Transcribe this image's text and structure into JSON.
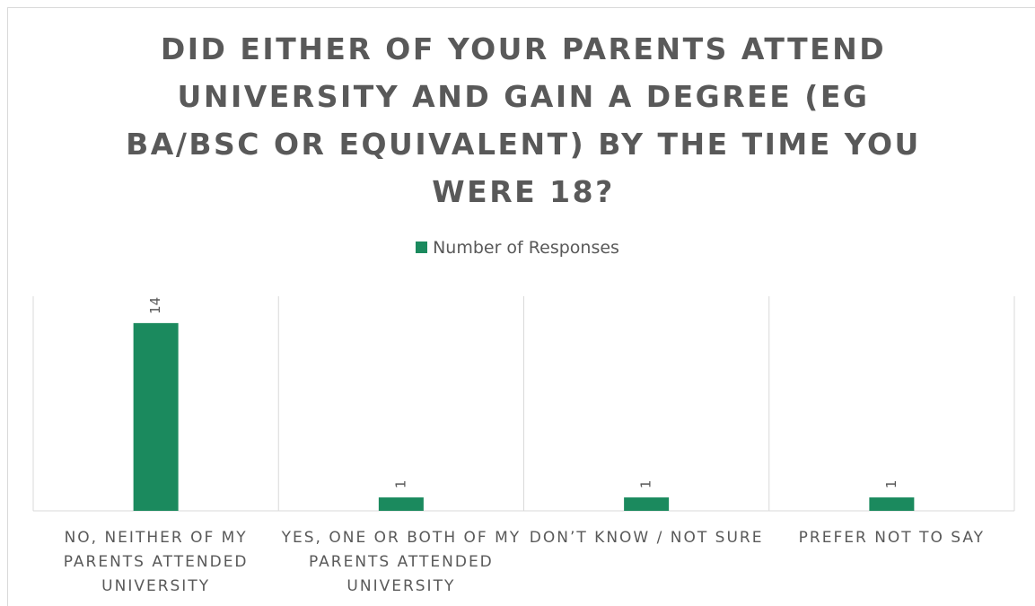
{
  "chart_data": {
    "type": "bar",
    "title": "DID EITHER OF YOUR PARENTS ATTEND UNIVERSITY AND GAIN A DEGREE (EG BA/BSC OR EQUIVALENT) BY THE TIME YOU WERE 18?",
    "categories": [
      "NO, NEITHER OF MY PARENTS ATTENDED UNIVERSITY",
      "YES, ONE OR BOTH OF MY PARENTS ATTENDED UNIVERSITY",
      "DON’T KNOW / NOT SURE",
      "PREFER NOT TO SAY"
    ],
    "series": [
      {
        "name": "Number of Responses",
        "color": "#1b8a5e",
        "values": [
          14,
          1,
          1,
          1
        ]
      }
    ],
    "ylim": [
      0,
      16
    ],
    "legend": "top"
  }
}
